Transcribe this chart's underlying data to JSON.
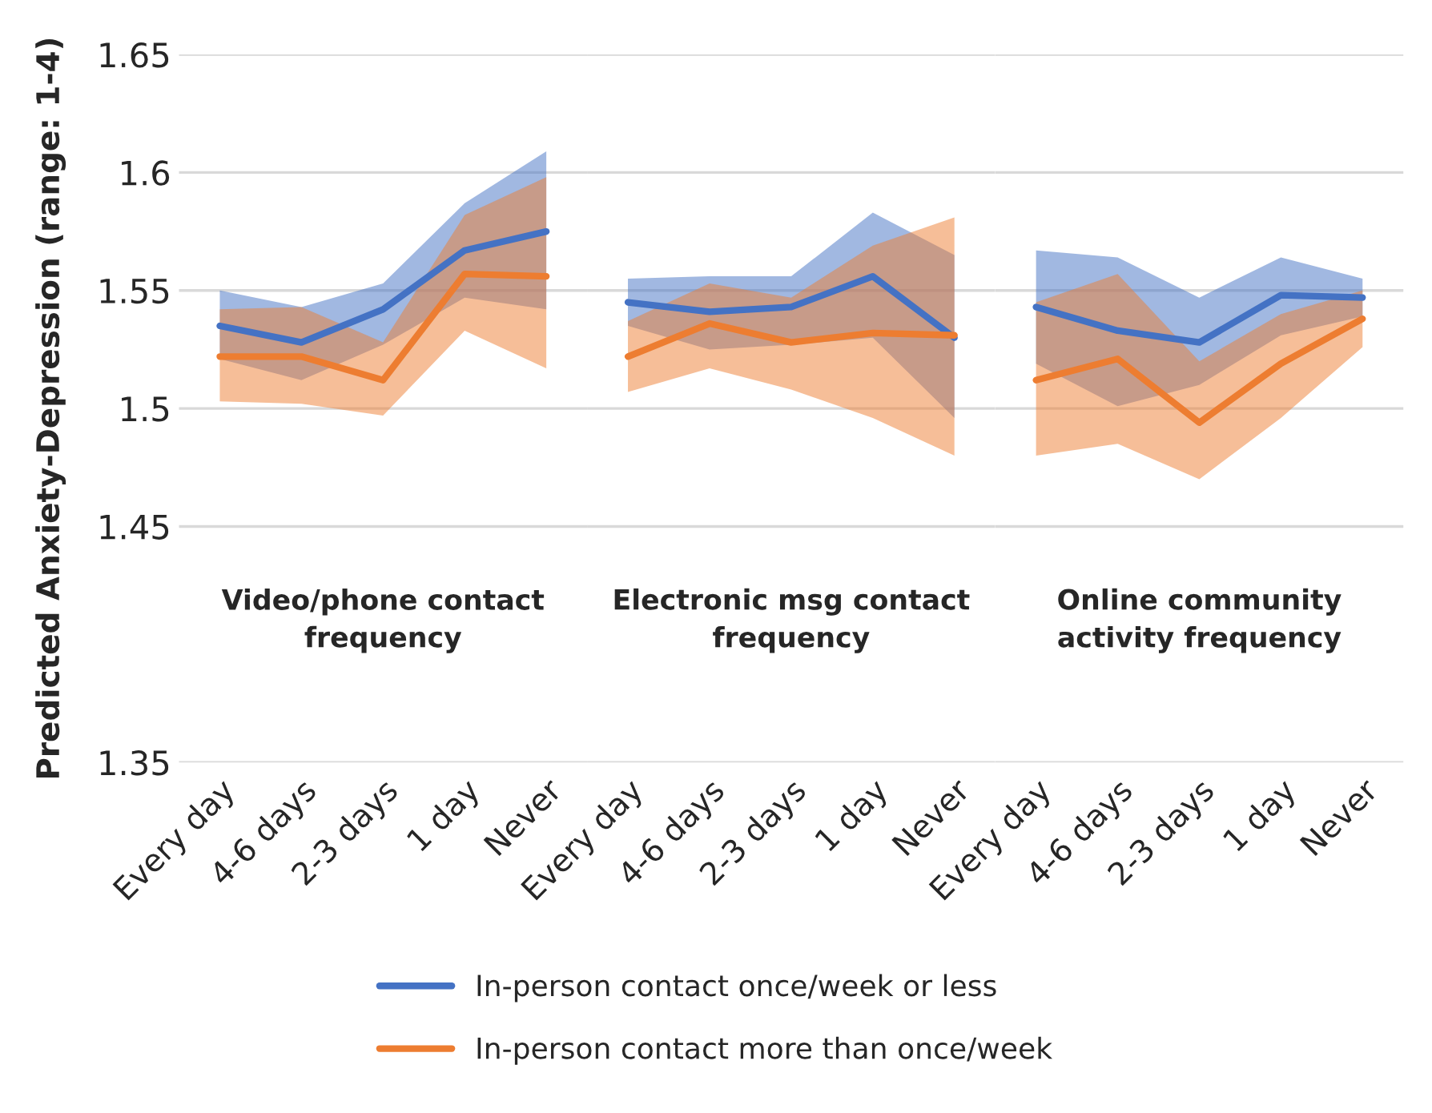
{
  "chart_data": [
    {
      "type": "line",
      "ylabel": "Predicted Anxiety-Depression (range: 1-4)",
      "categories": [
        "Every day",
        "4-6 days",
        "2-3 days",
        "1 day",
        "Never"
      ],
      "ylim": [
        1.35,
        1.65
      ],
      "yticks": [
        1.35,
        1.45,
        1.5,
        1.55,
        1.6,
        1.65
      ],
      "grid": "y",
      "legend": "bottom",
      "annotations": [
        "Video/phone contact\nfrequency"
      ],
      "series": [
        {
          "name": "In-person contact once/week or less",
          "color": "#4472c4",
          "values": [
            1.535,
            1.528,
            1.542,
            1.567,
            1.575
          ],
          "lower": [
            1.521,
            1.512,
            1.527,
            1.547,
            1.542
          ],
          "upper": [
            1.55,
            1.543,
            1.553,
            1.587,
            1.609
          ]
        },
        {
          "name": "In-person contact more than once/week",
          "color": "#ed7d31",
          "values": [
            1.522,
            1.522,
            1.512,
            1.557,
            1.556
          ],
          "lower": [
            1.503,
            1.502,
            1.497,
            1.533,
            1.517
          ],
          "upper": [
            1.542,
            1.543,
            1.528,
            1.582,
            1.598
          ]
        }
      ]
    },
    {
      "type": "line",
      "categories": [
        "Every day",
        "4-6 days",
        "2-3 days",
        "1 day",
        "Never"
      ],
      "ylim": [
        1.35,
        1.65
      ],
      "yticks": [
        1.35,
        1.45,
        1.5,
        1.55,
        1.6,
        1.65
      ],
      "grid": "y",
      "tick_labels": "x",
      "annotations": [
        "Electronic msg contact\nfrequency"
      ],
      "series": [
        {
          "color": "#4472c4",
          "values": [
            1.545,
            1.541,
            1.543,
            1.556,
            1.53
          ],
          "lower": [
            1.535,
            1.525,
            1.527,
            1.53,
            1.496
          ],
          "upper": [
            1.555,
            1.556,
            1.556,
            1.583,
            1.565
          ]
        },
        {
          "color": "#ed7d31",
          "values": [
            1.522,
            1.536,
            1.528,
            1.532,
            1.531
          ],
          "lower": [
            1.507,
            1.517,
            1.508,
            1.496,
            1.48
          ],
          "upper": [
            1.537,
            1.553,
            1.547,
            1.569,
            1.581
          ]
        }
      ]
    },
    {
      "type": "line",
      "categories": [
        "Every day",
        "4-6 days",
        "2-3 days",
        "1 day",
        "Never"
      ],
      "ylim": [
        1.35,
        1.65
      ],
      "yticks": [
        1.35,
        1.45,
        1.5,
        1.55,
        1.6,
        1.65
      ],
      "grid": "y",
      "tick_labels": "x",
      "annotations": [
        "Online community\nactivity frequency"
      ],
      "series": [
        {
          "color": "#4472c4",
          "values": [
            1.543,
            1.533,
            1.528,
            1.548,
            1.547
          ],
          "lower": [
            1.519,
            1.501,
            1.51,
            1.531,
            1.539
          ],
          "upper": [
            1.567,
            1.564,
            1.547,
            1.564,
            1.555
          ]
        },
        {
          "color": "#ed7d31",
          "values": [
            1.512,
            1.521,
            1.494,
            1.519,
            1.538
          ],
          "lower": [
            1.48,
            1.485,
            1.47,
            1.496,
            1.526
          ],
          "upper": [
            1.545,
            1.557,
            1.52,
            1.54,
            1.55
          ]
        }
      ]
    }
  ]
}
